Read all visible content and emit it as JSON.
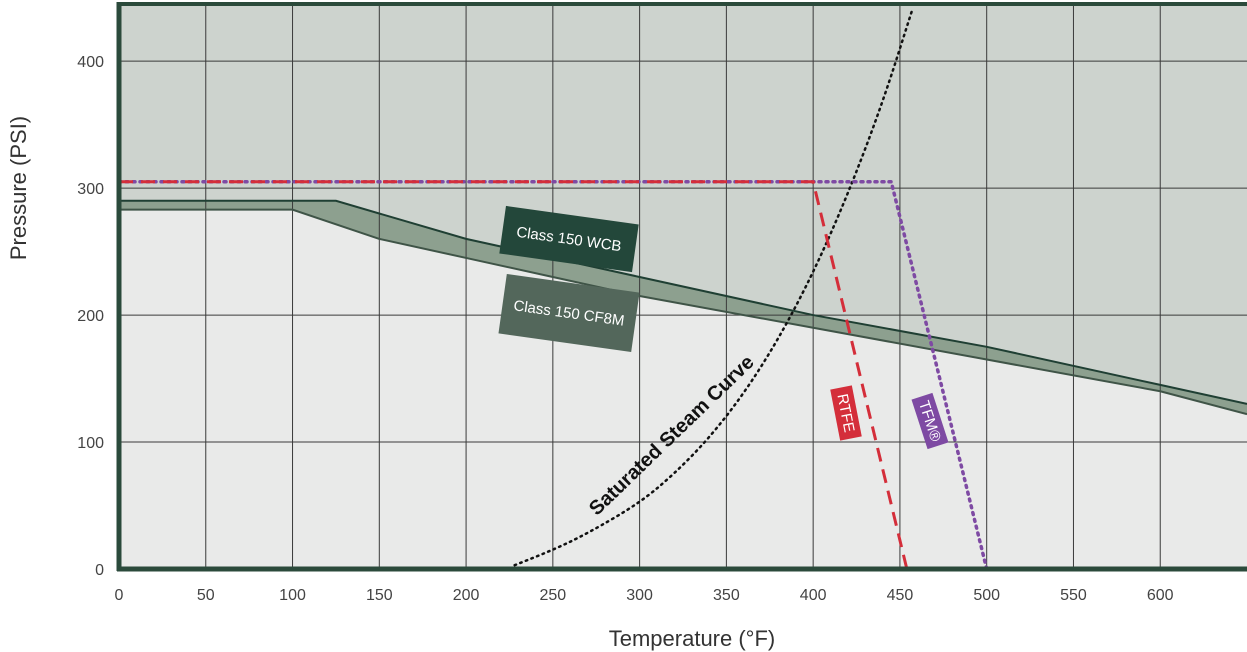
{
  "chart_data": {
    "type": "line",
    "title": "",
    "xlabel": "Temperature (°F)",
    "ylabel": "Pressure (PSI)",
    "xlim": [
      0,
      650
    ],
    "ylim": [
      0,
      445
    ],
    "x_ticks": [
      0,
      50,
      100,
      150,
      200,
      250,
      300,
      350,
      400,
      450,
      500,
      550,
      600
    ],
    "y_ticks": [
      0,
      100,
      200,
      300,
      400
    ],
    "grid": true,
    "colors": {
      "background": "#ffffff",
      "frame": "#2b4a3b",
      "grid": "#3a3a3a",
      "upper_region": "#cdd3ce",
      "lower_region": "#e9eae9",
      "class_band": "#8da08f",
      "wcb_label_fill": "#23473a",
      "cf8m_label_fill": "#53675b",
      "rtfe": "#d42e3a",
      "tfm": "#7e4aa3",
      "steam": "#111111"
    },
    "series": [
      {
        "name": "Class 150 WCB",
        "x": [
          0,
          125,
          200,
          300,
          400,
          500,
          600,
          650
        ],
        "y": [
          290,
          290,
          260,
          230,
          200,
          175,
          145,
          130
        ]
      },
      {
        "name": "Class 150 CF8M",
        "x": [
          0,
          100,
          150,
          200,
          250,
          300,
          400,
          500,
          600,
          650
        ],
        "y": [
          283,
          283,
          260,
          245,
          230,
          215,
          190,
          165,
          140,
          122
        ]
      },
      {
        "name": "RTFE",
        "x": [
          0,
          400,
          454
        ],
        "y": [
          305,
          305,
          0
        ]
      },
      {
        "name": "TFM®",
        "x": [
          0,
          445,
          500
        ],
        "y": [
          305,
          305,
          0
        ]
      },
      {
        "name": "Saturated Steam Curve",
        "x": [
          228,
          250,
          270,
          300,
          320,
          340,
          360,
          380,
          400,
          420,
          440,
          457
        ],
        "y": [
          3,
          15,
          28,
          52,
          75,
          103,
          138,
          181,
          233,
          295,
          367,
          440
        ]
      }
    ],
    "annotations": {
      "wcb_label": "Class 150 WCB",
      "cf8m_label": "Class 150 CF8M",
      "rtfe_label": "RTFE",
      "tfm_label": "TFM®",
      "steam_label": "Saturated Steam Curve"
    }
  }
}
